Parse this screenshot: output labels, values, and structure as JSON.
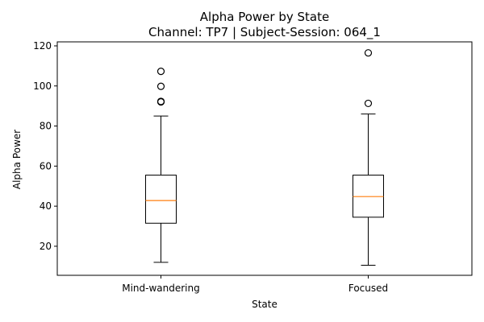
{
  "chart_data": {
    "type": "box",
    "title": "Alpha Power by State",
    "subtitle": "Channel: TP7 | Subject-Session: 064_1",
    "xlabel": "State",
    "ylabel": "Alpha Power",
    "ylim": [
      5.5,
      122
    ],
    "yticks": [
      20,
      40,
      60,
      80,
      100,
      120
    ],
    "categories": [
      "Mind-wandering",
      "Focused"
    ],
    "boxes": [
      {
        "name": "Mind-wandering",
        "whisker_low": 12,
        "q1": 31.5,
        "median": 42.8,
        "q3": 55.5,
        "whisker_high": 85,
        "outliers": [
          92,
          92.3,
          99.8,
          107.3
        ]
      },
      {
        "name": "Focused",
        "whisker_low": 10.5,
        "q1": 34.5,
        "median": 44.8,
        "q3": 55.5,
        "whisker_high": 86,
        "outliers": [
          91.3,
          116.5
        ]
      }
    ],
    "grid": false,
    "colors": {
      "box": "#000000",
      "median": "#ff7f0e",
      "outlier": "#000000"
    }
  }
}
